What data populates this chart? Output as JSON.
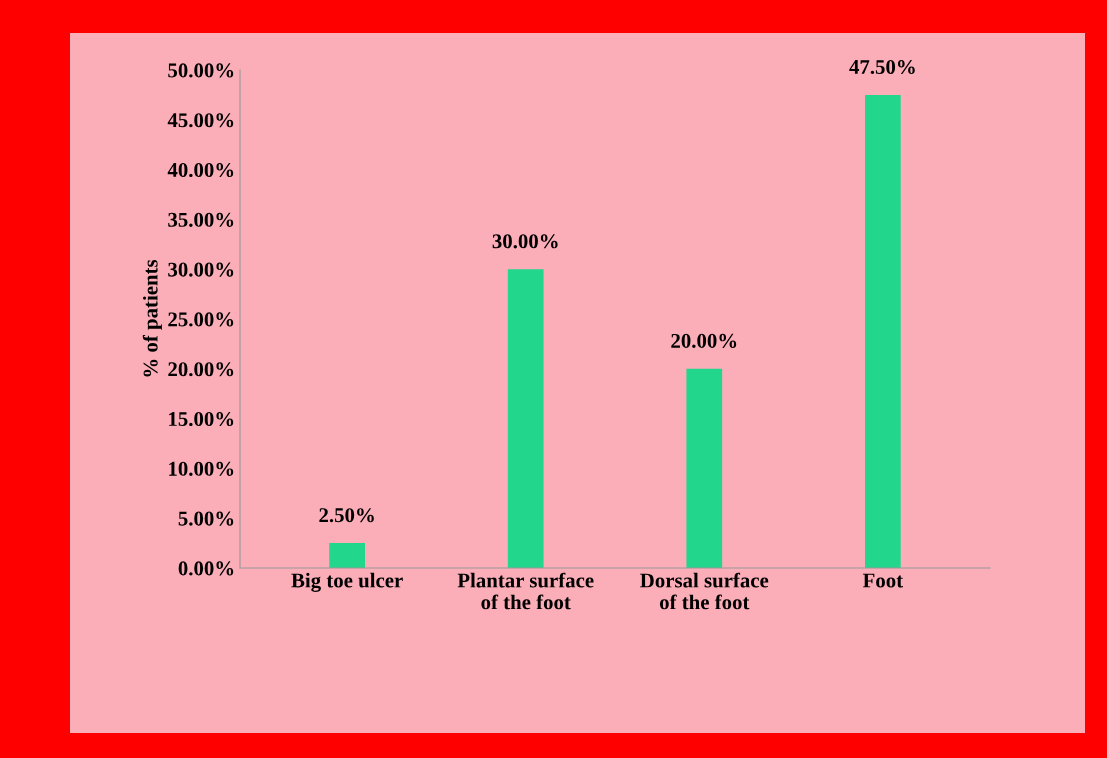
{
  "chart_data": {
    "type": "bar",
    "ylabel": "% of patients",
    "categories": [
      "Big toe ulcer",
      "Plantar surface\nof the foot",
      "Dorsal surface\nof the foot",
      "Foot"
    ],
    "values": [
      2.5,
      30,
      20,
      47.5
    ],
    "value_labels": [
      "2.50%",
      "30.00%",
      "20.00%",
      "47.50%"
    ],
    "color": "#22d68c",
    "ylim": [
      0,
      50
    ],
    "yticks": [
      {
        "value": 0,
        "label": "0.00%"
      },
      {
        "value": 5,
        "label": "5.00%"
      },
      {
        "value": 10,
        "label": "10.00%"
      },
      {
        "value": 15,
        "label": "15.00%"
      },
      {
        "value": 20,
        "label": "20.00%"
      },
      {
        "value": 25,
        "label": "25.00%"
      },
      {
        "value": 30,
        "label": "30.00%"
      },
      {
        "value": 35,
        "label": "35.00%"
      },
      {
        "value": 40,
        "label": "40.00%"
      },
      {
        "value": 45,
        "label": "45.00%"
      },
      {
        "value": 50,
        "label": "50.00%"
      }
    ]
  }
}
